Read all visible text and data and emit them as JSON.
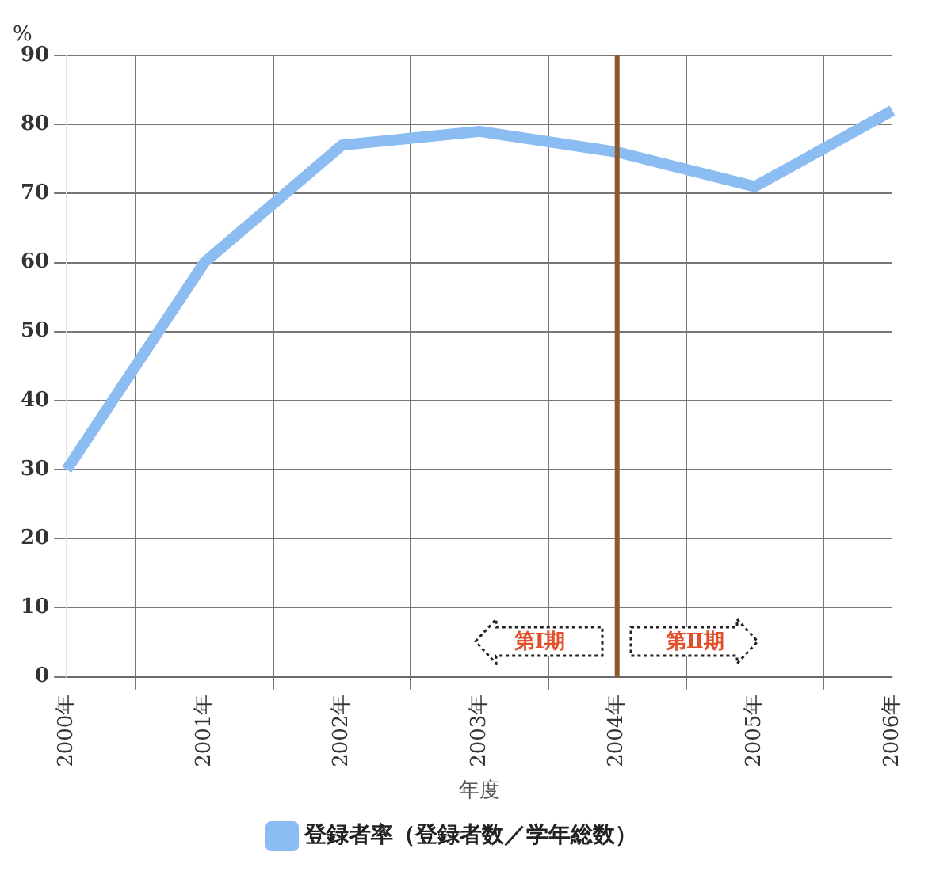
{
  "chart_data": {
    "type": "line",
    "xlabel": "年度",
    "ylabel": "%",
    "categories": [
      "2000年",
      "2001年",
      "2002年",
      "2003年",
      "2004年",
      "2005年",
      "2006年"
    ],
    "series": [
      {
        "name": "登録者率（登録者数／学年総数）",
        "color": "#8cbdf2",
        "values": [
          30,
          60,
          77,
          79,
          76,
          71,
          82
        ]
      }
    ],
    "ylim": [
      0,
      90
    ],
    "yticks": [
      0,
      10,
      20,
      30,
      40,
      50,
      60,
      70,
      80,
      90
    ],
    "grid": true,
    "legend": "bottom",
    "marker": "none",
    "ref_lines": [
      {
        "axis": "x",
        "value": "2004年",
        "color": "#8b5a2b"
      }
    ],
    "annotations": [
      "第Ⅰ期",
      "第Ⅱ期"
    ]
  }
}
